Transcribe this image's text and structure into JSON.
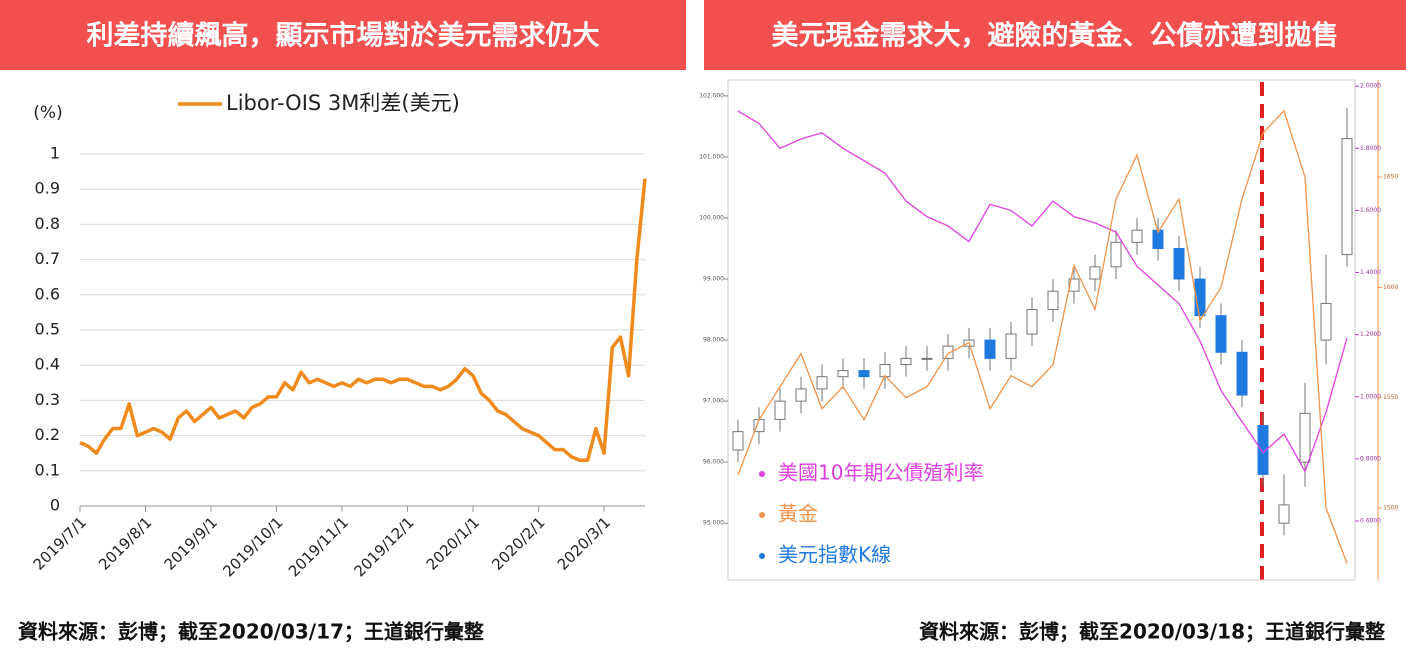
{
  "chart_data": [
    {
      "type": "line",
      "title": "利差持續飆高，顯示市場對於美元需求仍大",
      "source": "資料來源：彭博；截至2020/03/17；王道銀行彙整",
      "y_label": "(%)",
      "categories": [
        "2019/7/1",
        null,
        null,
        null,
        null,
        null,
        null,
        null,
        "2019/8/1",
        null,
        null,
        null,
        null,
        null,
        null,
        null,
        "2019/9/1",
        null,
        null,
        null,
        null,
        null,
        null,
        null,
        "2019/10/1",
        null,
        null,
        null,
        null,
        null,
        null,
        null,
        "2019/11/1",
        null,
        null,
        null,
        null,
        null,
        null,
        null,
        "2019/12/1",
        null,
        null,
        null,
        null,
        null,
        null,
        null,
        "2020/1/1",
        null,
        null,
        null,
        null,
        null,
        null,
        null,
        "2020/2/1",
        null,
        null,
        null,
        null,
        null,
        null,
        null,
        "2020/3/1",
        null,
        null,
        null,
        null,
        null
      ],
      "series": [
        {
          "name": "Libor-OIS 3M利差(美元)",
          "color": "#f08a1c",
          "values": [
            0.18,
            0.17,
            0.15,
            0.19,
            0.22,
            0.22,
            0.29,
            0.2,
            0.21,
            0.22,
            0.21,
            0.19,
            0.25,
            0.27,
            0.24,
            0.26,
            0.28,
            0.25,
            0.26,
            0.27,
            0.25,
            0.28,
            0.29,
            0.31,
            0.31,
            0.35,
            0.33,
            0.38,
            0.35,
            0.36,
            0.35,
            0.34,
            0.35,
            0.34,
            0.36,
            0.35,
            0.36,
            0.36,
            0.35,
            0.36,
            0.36,
            0.35,
            0.34,
            0.34,
            0.33,
            0.34,
            0.36,
            0.39,
            0.37,
            0.32,
            0.3,
            0.27,
            0.26,
            0.24,
            0.22,
            0.21,
            0.2,
            0.18,
            0.16,
            0.16,
            0.14,
            0.13,
            0.13,
            0.22,
            0.15,
            0.45,
            0.48,
            0.37,
            0.7,
            0.93
          ]
        }
      ],
      "ylim": [
        0,
        1
      ],
      "yticks": [
        0,
        0.1,
        0.2,
        0.3,
        0.4,
        0.5,
        0.6,
        0.7,
        0.8,
        0.9,
        1
      ],
      "grid": true
    },
    {
      "type": "combo",
      "title": "美元現金需求大，避險的黃金、公債亦遭到拋售",
      "source": "資料來源：彭博；截至2020/03/18；王道銀行彙整",
      "categories": [
        null,
        null,
        null,
        null,
        null,
        null,
        null,
        null,
        null,
        null,
        null,
        null,
        null,
        null,
        null,
        null,
        null,
        null,
        null,
        null,
        null,
        null,
        null,
        null,
        null,
        null,
        null,
        null,
        null,
        null
      ],
      "candles": {
        "name": "美元指數K線",
        "color": "#1f7ae0",
        "up_color": "#ffffff",
        "open": [
          96.2,
          96.5,
          96.7,
          97.0,
          97.2,
          97.4,
          97.5,
          97.4,
          97.6,
          97.7,
          97.7,
          97.9,
          98.0,
          97.7,
          98.1,
          98.5,
          98.8,
          99.0,
          99.2,
          99.6,
          99.8,
          99.5,
          99.0,
          98.4,
          97.8,
          96.6,
          95.0,
          96.0,
          98.0,
          99.4
        ],
        "high": [
          96.7,
          96.9,
          97.2,
          97.4,
          97.6,
          97.7,
          97.7,
          97.8,
          97.9,
          97.9,
          98.1,
          98.2,
          98.2,
          98.3,
          98.7,
          99.0,
          99.2,
          99.4,
          99.8,
          100.0,
          100.0,
          99.7,
          99.2,
          98.6,
          98.0,
          96.8,
          95.8,
          97.3,
          99.4,
          101.8
        ],
        "low": [
          96.0,
          96.3,
          96.5,
          96.8,
          97.0,
          97.2,
          97.2,
          97.2,
          97.4,
          97.5,
          97.5,
          97.7,
          97.5,
          97.5,
          97.9,
          98.3,
          98.6,
          98.8,
          99.0,
          99.4,
          99.3,
          98.8,
          98.2,
          97.6,
          96.9,
          95.6,
          94.8,
          95.6,
          97.6,
          99.2
        ],
        "close": [
          96.5,
          96.7,
          97.0,
          97.2,
          97.4,
          97.5,
          97.4,
          97.6,
          97.7,
          97.7,
          97.9,
          98.0,
          97.7,
          98.1,
          98.5,
          98.8,
          99.0,
          99.2,
          99.6,
          99.8,
          99.5,
          99.0,
          98.4,
          97.8,
          97.1,
          95.8,
          95.3,
          96.8,
          98.6,
          101.3
        ]
      },
      "series": [
        {
          "name": "美國10年期公債殖利率",
          "color": "#e040e0",
          "axis": "y2",
          "values": [
            1.92,
            1.88,
            1.8,
            1.83,
            1.85,
            1.8,
            1.76,
            1.72,
            1.63,
            1.58,
            1.55,
            1.5,
            1.62,
            1.6,
            1.55,
            1.63,
            1.58,
            1.56,
            1.53,
            1.42,
            1.36,
            1.3,
            1.18,
            1.02,
            0.92,
            0.82,
            0.88,
            0.76,
            0.95,
            1.19
          ]
        },
        {
          "name": "黃金",
          "color": "#f0924a",
          "axis": "y3",
          "values": [
            1515,
            1540,
            1555,
            1570,
            1545,
            1555,
            1540,
            1560,
            1550,
            1555,
            1570,
            1575,
            1545,
            1560,
            1555,
            1565,
            1610,
            1590,
            1640,
            1660,
            1625,
            1640,
            1585,
            1600,
            1640,
            1670,
            1680,
            1650,
            1500,
            1475
          ]
        }
      ],
      "ylim": [
        94.07,
        102.26
      ],
      "yticks": [
        {
          "value": 95,
          "label": "95.000"
        },
        {
          "value": 96,
          "label": "96.000"
        },
        {
          "value": 97,
          "label": "97.000"
        },
        {
          "value": 98,
          "label": "98.000"
        },
        {
          "value": 99,
          "label": "99.000"
        },
        {
          "value": 100,
          "label": "100.000"
        },
        {
          "value": 101,
          "label": "101.000"
        },
        {
          "value": 102,
          "label": "102.000"
        }
      ],
      "y2lim": [
        0.41,
        2.02
      ],
      "y2ticks": [
        {
          "value": 0.6,
          "label": "0.6000"
        },
        {
          "value": 0.8,
          "label": "0.8000"
        },
        {
          "value": 1,
          "label": "1.0000"
        },
        {
          "value": 1.2,
          "label": "1.2000"
        },
        {
          "value": 1.4,
          "label": "1.4000"
        },
        {
          "value": 1.6,
          "label": "1.6000"
        },
        {
          "value": 1.8,
          "label": "1.8000"
        },
        {
          "value": 2,
          "label": "2.0000"
        }
      ],
      "y3lim": [
        1467.4,
        1694
      ],
      "y3ticks": [
        1500,
        1550,
        1600,
        1650
      ]
    }
  ]
}
